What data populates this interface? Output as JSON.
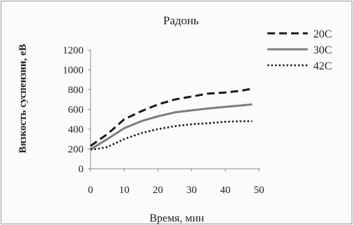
{
  "chart_data": {
    "type": "line",
    "title": "Радонь",
    "xlabel": "Время, мин",
    "ylabel": "Вязкость суспензии, еВ",
    "xlim": [
      0,
      50
    ],
    "ylim": [
      0,
      1200
    ],
    "xticks": [
      "0",
      "10",
      "20",
      "30",
      "40",
      "50"
    ],
    "yticks": [
      "0",
      "200",
      "400",
      "600",
      "800",
      "1000",
      "1200"
    ],
    "grid": false,
    "legend_position": "top-right",
    "series": [
      {
        "name": "20С",
        "dash": "dashed",
        "color": "#1a1a1a",
        "x": [
          0,
          5,
          10,
          15,
          20,
          25,
          30,
          35,
          40,
          45,
          48
        ],
        "y": [
          230,
          350,
          500,
          580,
          650,
          700,
          730,
          760,
          770,
          790,
          810
        ]
      },
      {
        "name": "30С",
        "dash": "solid",
        "color": "#7d7d7d",
        "x": [
          0,
          5,
          10,
          15,
          20,
          25,
          30,
          35,
          40,
          45,
          48
        ],
        "y": [
          195,
          300,
          410,
          480,
          530,
          570,
          590,
          610,
          625,
          640,
          650
        ]
      },
      {
        "name": "42С",
        "dash": "dotted",
        "color": "#1a1a1a",
        "x": [
          0,
          2,
          5,
          10,
          15,
          20,
          25,
          30,
          35,
          40,
          45,
          48
        ],
        "y": [
          195,
          200,
          220,
          300,
          360,
          400,
          430,
          450,
          460,
          475,
          480,
          480
        ]
      }
    ]
  }
}
